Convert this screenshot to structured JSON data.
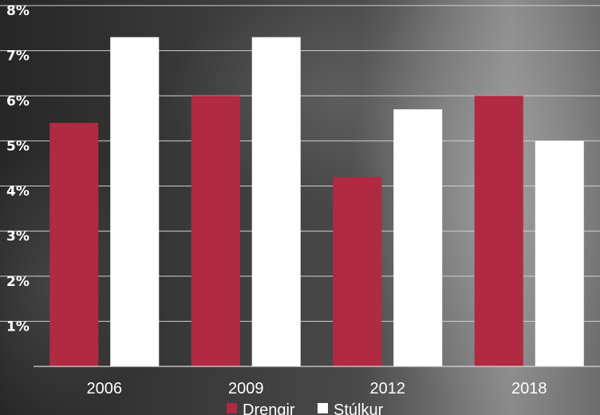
{
  "chart_data": {
    "type": "bar",
    "categories": [
      "2006",
      "2009",
      "2012",
      "2018"
    ],
    "series": [
      {
        "name": "Drengir",
        "values": [
          5.4,
          6.0,
          4.2,
          6.0
        ],
        "color": "#b02a42"
      },
      {
        "name": "Stúlkur",
        "values": [
          7.3,
          7.3,
          5.7,
          5.0
        ],
        "color": "#ffffff"
      }
    ],
    "y_ticks": [
      "1%",
      "2%",
      "3%",
      "4%",
      "5%",
      "6%",
      "7%",
      "8%"
    ],
    "ylim": [
      0,
      8
    ],
    "grid": true,
    "legend": "bottom-center",
    "title": "",
    "xlabel": "",
    "ylabel": ""
  }
}
